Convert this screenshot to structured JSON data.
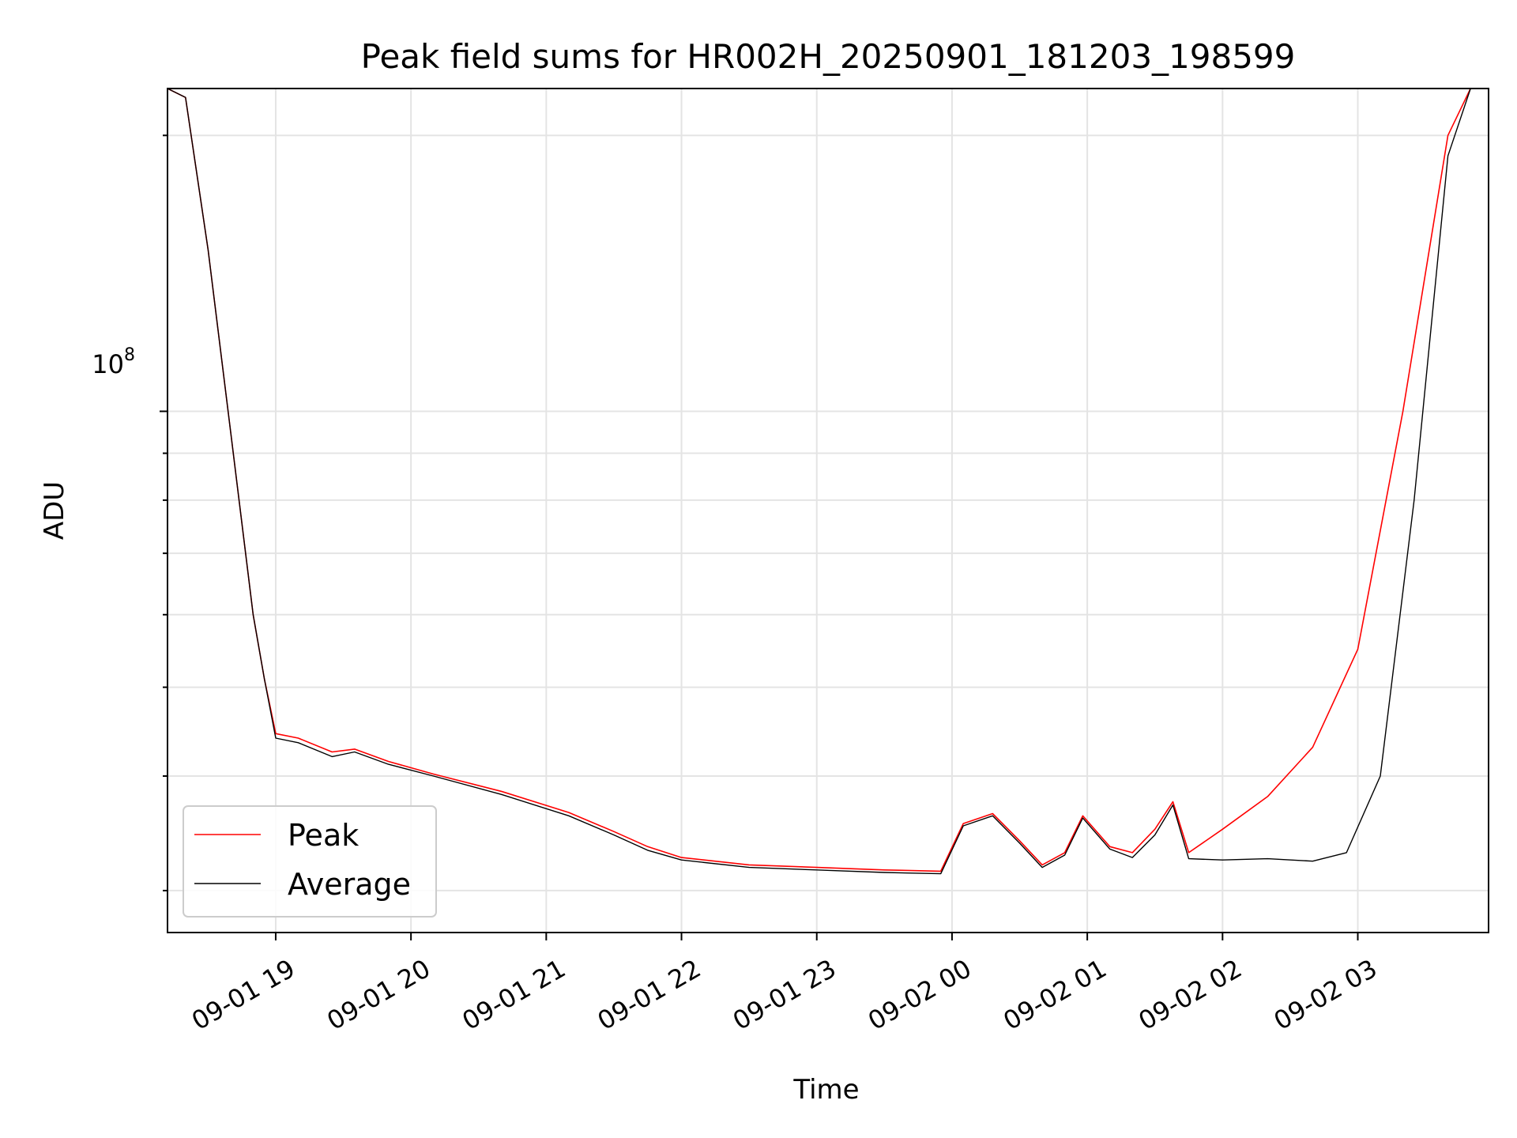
{
  "chart_data": {
    "type": "line",
    "title": "Peak field sums for HR002H_20250901_181203_198599",
    "xlabel": "Time",
    "ylabel": "ADU",
    "y_scale": "log",
    "ylim": [
      27000000,
      225000000
    ],
    "xlim": [
      "2025-09-01 18:12",
      "2025-09-02 03:58"
    ],
    "y_tick_label": {
      "base": "10",
      "exponent": "8"
    },
    "x_ticks": [
      "09-01 19",
      "09-01 20",
      "09-01 21",
      "09-01 22",
      "09-01 23",
      "09-02 00",
      "09-02 01",
      "09-02 02",
      "09-02 03"
    ],
    "x_tick_times": [
      "2025-09-01 19:00",
      "2025-09-01 20:00",
      "2025-09-01 21:00",
      "2025-09-01 22:00",
      "2025-09-01 23:00",
      "2025-09-02 00:00",
      "2025-09-02 01:00",
      "2025-09-02 02:00",
      "2025-09-02 03:00"
    ],
    "grid": true,
    "legend_position": "lower-left",
    "series": [
      {
        "name": "Peak",
        "color": "#ff0000",
        "points": [
          [
            "2025-09-01 18:12",
            225000000
          ],
          [
            "2025-09-01 18:20",
            220000000
          ],
          [
            "2025-09-01 18:30",
            150000000
          ],
          [
            "2025-09-01 18:40",
            95000000
          ],
          [
            "2025-09-01 18:50",
            60000000
          ],
          [
            "2025-09-01 18:55",
            51000000
          ],
          [
            "2025-09-01 19:00",
            44500000
          ],
          [
            "2025-09-01 19:10",
            44000000
          ],
          [
            "2025-09-01 19:25",
            42500000
          ],
          [
            "2025-09-01 19:35",
            42800000
          ],
          [
            "2025-09-01 19:50",
            41500000
          ],
          [
            "2025-09-01 20:10",
            40200000
          ],
          [
            "2025-09-01 20:40",
            38500000
          ],
          [
            "2025-09-01 21:10",
            36500000
          ],
          [
            "2025-09-01 21:30",
            34800000
          ],
          [
            "2025-09-01 21:45",
            33500000
          ],
          [
            "2025-09-01 22:00",
            32600000
          ],
          [
            "2025-09-01 22:30",
            32000000
          ],
          [
            "2025-09-01 23:00",
            31800000
          ],
          [
            "2025-09-01 23:30",
            31600000
          ],
          [
            "2025-09-01 23:55",
            31500000
          ],
          [
            "2025-09-02 00:05",
            35500000
          ],
          [
            "2025-09-02 00:18",
            36400000
          ],
          [
            "2025-09-02 00:30",
            34000000
          ],
          [
            "2025-09-02 00:40",
            32000000
          ],
          [
            "2025-09-02 00:50",
            33000000
          ],
          [
            "2025-09-02 00:58",
            36200000
          ],
          [
            "2025-09-02 01:10",
            33500000
          ],
          [
            "2025-09-02 01:20",
            33000000
          ],
          [
            "2025-09-02 01:30",
            35000000
          ],
          [
            "2025-09-02 01:38",
            37500000
          ],
          [
            "2025-09-02 01:45",
            33000000
          ],
          [
            "2025-09-02 02:00",
            35000000
          ],
          [
            "2025-09-02 02:20",
            38000000
          ],
          [
            "2025-09-02 02:40",
            43000000
          ],
          [
            "2025-09-02 03:00",
            55000000
          ],
          [
            "2025-09-02 03:20",
            100000000
          ],
          [
            "2025-09-02 03:40",
            200000000
          ],
          [
            "2025-09-02 03:50",
            225000000
          ]
        ]
      },
      {
        "name": "Average",
        "color": "#000000",
        "points": [
          [
            "2025-09-01 18:12",
            225000000
          ],
          [
            "2025-09-01 18:20",
            220000000
          ],
          [
            "2025-09-01 18:30",
            150000000
          ],
          [
            "2025-09-01 18:40",
            95000000
          ],
          [
            "2025-09-01 18:50",
            60000000
          ],
          [
            "2025-09-01 18:55",
            51000000
          ],
          [
            "2025-09-01 19:00",
            44000000
          ],
          [
            "2025-09-01 19:10",
            43500000
          ],
          [
            "2025-09-01 19:25",
            42000000
          ],
          [
            "2025-09-01 19:35",
            42500000
          ],
          [
            "2025-09-01 19:50",
            41200000
          ],
          [
            "2025-09-01 20:10",
            40000000
          ],
          [
            "2025-09-01 20:40",
            38200000
          ],
          [
            "2025-09-01 21:10",
            36200000
          ],
          [
            "2025-09-01 21:30",
            34500000
          ],
          [
            "2025-09-01 21:45",
            33200000
          ],
          [
            "2025-09-01 22:00",
            32400000
          ],
          [
            "2025-09-01 22:30",
            31800000
          ],
          [
            "2025-09-01 23:00",
            31600000
          ],
          [
            "2025-09-01 23:30",
            31400000
          ],
          [
            "2025-09-01 23:55",
            31300000
          ],
          [
            "2025-09-02 00:05",
            35300000
          ],
          [
            "2025-09-02 00:18",
            36200000
          ],
          [
            "2025-09-02 00:30",
            33800000
          ],
          [
            "2025-09-02 00:40",
            31800000
          ],
          [
            "2025-09-02 00:50",
            32800000
          ],
          [
            "2025-09-02 00:58",
            36000000
          ],
          [
            "2025-09-02 01:10",
            33300000
          ],
          [
            "2025-09-02 01:20",
            32600000
          ],
          [
            "2025-09-02 01:30",
            34500000
          ],
          [
            "2025-09-02 01:38",
            37200000
          ],
          [
            "2025-09-02 01:45",
            32500000
          ],
          [
            "2025-09-02 02:00",
            32400000
          ],
          [
            "2025-09-02 02:20",
            32500000
          ],
          [
            "2025-09-02 02:40",
            32300000
          ],
          [
            "2025-09-02 02:55",
            33000000
          ],
          [
            "2025-09-02 03:10",
            40000000
          ],
          [
            "2025-09-02 03:25",
            80000000
          ],
          [
            "2025-09-02 03:40",
            190000000
          ],
          [
            "2025-09-02 03:50",
            225000000
          ]
        ]
      }
    ]
  }
}
